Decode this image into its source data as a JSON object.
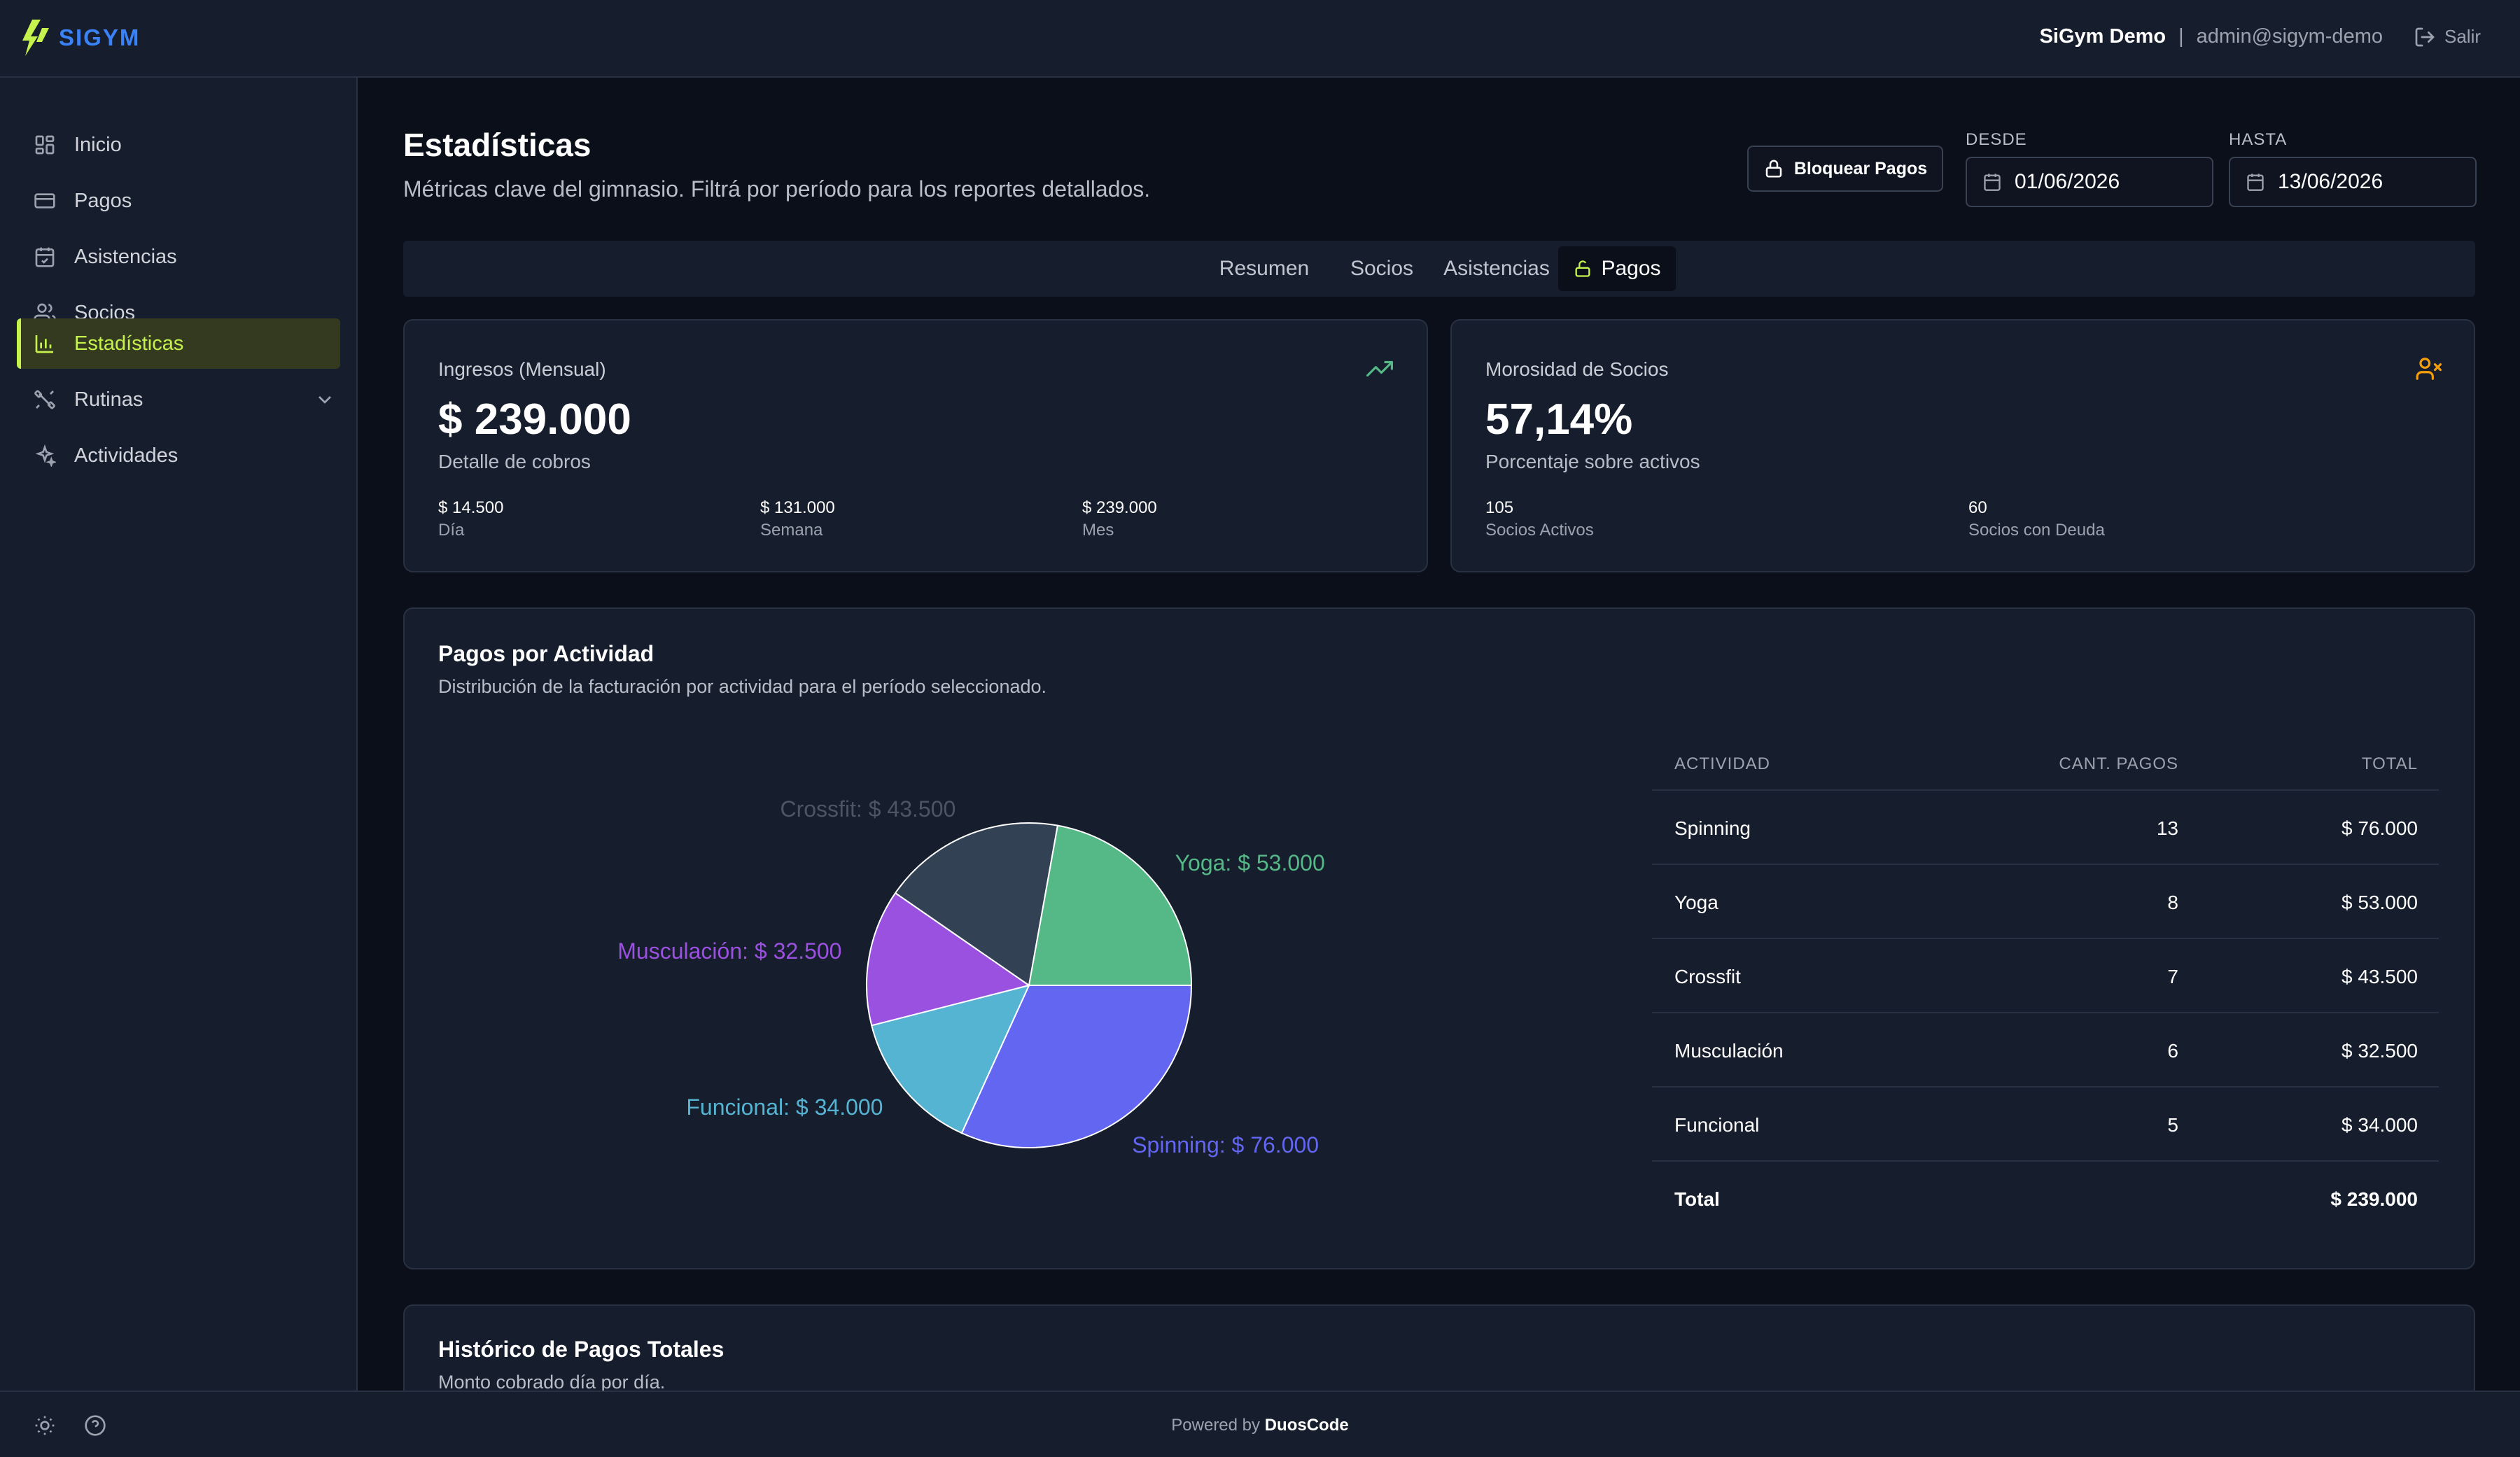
{
  "app": {
    "name": "SIGYM"
  },
  "header": {
    "org": "SiGym Demo",
    "separator": "|",
    "email": "admin@sigym-demo",
    "logout": "Salir"
  },
  "sidebar": {
    "items": [
      {
        "label": "Inicio",
        "icon": "dashboard-icon"
      },
      {
        "label": "Pagos",
        "icon": "credit-card-icon"
      },
      {
        "label": "Asistencias",
        "icon": "calendar-check-icon"
      },
      {
        "label": "Socios",
        "icon": "users-icon"
      },
      {
        "label": "Estadísticas",
        "icon": "bar-chart-icon",
        "active": true
      },
      {
        "label": "Rutinas",
        "icon": "dumbbell-icon",
        "expandable": true
      },
      {
        "label": "Actividades",
        "icon": "sparkles-icon"
      }
    ]
  },
  "page": {
    "title": "Estadísticas",
    "subtitle": "Métricas clave del gimnasio. Filtrá por período para los reportes detallados."
  },
  "filters": {
    "lock_button": "Bloquear Pagos",
    "from_label": "DESDE",
    "from_value": "01/06/2026",
    "to_label": "HASTA",
    "to_value": "13/06/2026"
  },
  "tabs": [
    {
      "label": "Resumen"
    },
    {
      "label": "Socios"
    },
    {
      "label": "Asistencias"
    },
    {
      "label": "Pagos",
      "active": true
    }
  ],
  "income_card": {
    "label": "Ingresos (Mensual)",
    "value": "$ 239.000",
    "sub": "Detalle de cobros",
    "stats": [
      {
        "value": "$ 14.500",
        "label": "Día"
      },
      {
        "value": "$ 131.000",
        "label": "Semana"
      },
      {
        "value": "$ 239.000",
        "label": "Mes"
      }
    ]
  },
  "debt_card": {
    "label": "Morosidad de Socios",
    "value": "57,14%",
    "sub": "Porcentaje sobre activos",
    "stats": [
      {
        "value": "105",
        "label": "Socios Activos"
      },
      {
        "value": "60",
        "label": "Socios con Deuda"
      }
    ]
  },
  "activity_section": {
    "title": "Pagos por Actividad",
    "subtitle": "Distribución de la facturación por actividad para el período seleccionado."
  },
  "chart_data": {
    "type": "pie",
    "slices": [
      {
        "label": "Spinning: $ 76.000",
        "name": "Spinning",
        "value": 76000,
        "color": "#6366f1"
      },
      {
        "label": "Funcional: $ 34.000",
        "name": "Funcional",
        "value": 34000,
        "color": "#56b4d3"
      },
      {
        "label": "Musculación: $ 32.500",
        "name": "Musculación",
        "value": 32500,
        "color": "#9b51e0"
      },
      {
        "label": "Crossfit: $ 43.500",
        "name": "Crossfit",
        "value": 43500,
        "color": "#334155",
        "label_color": "#4b5563"
      },
      {
        "label": "Yoga: $ 53.000",
        "name": "Yoga",
        "value": 53000,
        "color": "#55b887"
      }
    ]
  },
  "table": {
    "headers": [
      "ACTIVIDAD",
      "CANT. PAGOS",
      "TOTAL"
    ],
    "rows": [
      [
        "Spinning",
        "13",
        "$ 76.000"
      ],
      [
        "Yoga",
        "8",
        "$ 53.000"
      ],
      [
        "Crossfit",
        "7",
        "$ 43.500"
      ],
      [
        "Musculación",
        "6",
        "$ 32.500"
      ],
      [
        "Funcional",
        "5",
        "$ 34.000"
      ]
    ],
    "total_label": "Total",
    "total_value": "$ 239.000"
  },
  "history_section": {
    "title": "Histórico de Pagos Totales",
    "subtitle": "Monto cobrado día por día."
  },
  "footer": {
    "powered_prefix": "Powered by",
    "powered_brand": "DuosCode"
  }
}
